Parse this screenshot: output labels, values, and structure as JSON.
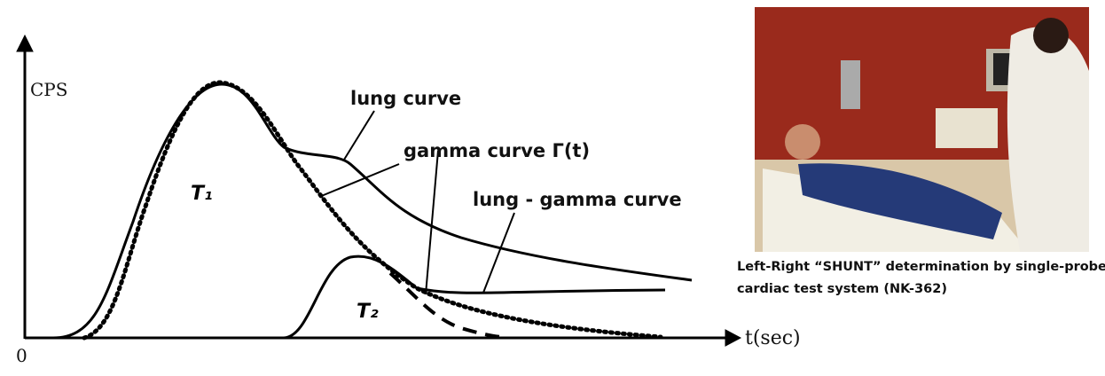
{
  "diagram": {
    "axis": {
      "y_label": "CPS",
      "origin": "0",
      "x_label": "t(sec)"
    },
    "labels": {
      "lung": "lung curve",
      "gamma": "gamma curve Γ(t)",
      "lung_gamma": "lung - gamma curve",
      "t1": "T₁",
      "t2": "T₂"
    }
  },
  "photo": {
    "caption": [
      "Left-Right “SHUNT” determination by single-probe",
      "cardiac test system (NK-362)"
    ]
  }
}
